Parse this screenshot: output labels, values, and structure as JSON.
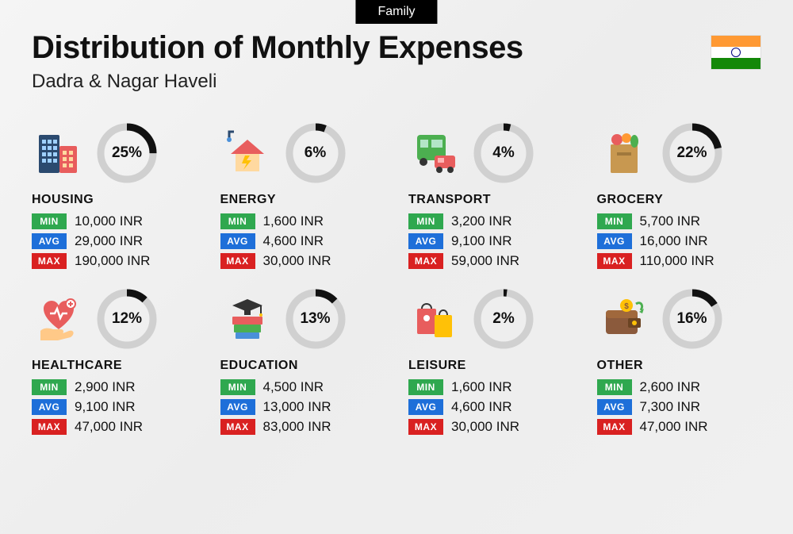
{
  "badge": "Family",
  "title": "Distribution of Monthly Expenses",
  "subtitle": "Dadra & Nagar Haveli",
  "flag": {
    "top_color": "#ff9933",
    "middle_color": "#ffffff",
    "bottom_color": "#138808",
    "chakra_color": "#000080"
  },
  "labels": {
    "min": "MIN",
    "avg": "AVG",
    "max": "MAX"
  },
  "label_colors": {
    "min": "#2fa84f",
    "avg": "#1e6fd9",
    "max": "#d92121"
  },
  "ring": {
    "bg_color": "#d0d0d0",
    "fg_color": "#111111",
    "stroke_width": 9
  },
  "currency_suffix": "INR",
  "categories": [
    {
      "key": "housing",
      "name": "HOUSING",
      "pct": 25,
      "min": "10,000 INR",
      "avg": "29,000 INR",
      "max": "190,000 INR",
      "icon": "buildings"
    },
    {
      "key": "energy",
      "name": "ENERGY",
      "pct": 6,
      "min": "1,600 INR",
      "avg": "4,600 INR",
      "max": "30,000 INR",
      "icon": "energy-house"
    },
    {
      "key": "transport",
      "name": "TRANSPORT",
      "pct": 4,
      "min": "3,200 INR",
      "avg": "9,100 INR",
      "max": "59,000 INR",
      "icon": "bus-car"
    },
    {
      "key": "grocery",
      "name": "GROCERY",
      "pct": 22,
      "min": "5,700 INR",
      "avg": "16,000 INR",
      "max": "110,000 INR",
      "icon": "grocery-bag"
    },
    {
      "key": "healthcare",
      "name": "HEALTHCARE",
      "pct": 12,
      "min": "2,900 INR",
      "avg": "9,100 INR",
      "max": "47,000 INR",
      "icon": "heart-hand"
    },
    {
      "key": "education",
      "name": "EDUCATION",
      "pct": 13,
      "min": "4,500 INR",
      "avg": "13,000 INR",
      "max": "83,000 INR",
      "icon": "grad-books"
    },
    {
      "key": "leisure",
      "name": "LEISURE",
      "pct": 2,
      "min": "1,600 INR",
      "avg": "4,600 INR",
      "max": "30,000 INR",
      "icon": "shopping-bags"
    },
    {
      "key": "other",
      "name": "OTHER",
      "pct": 16,
      "min": "2,600 INR",
      "avg": "7,300 INR",
      "max": "47,000 INR",
      "icon": "wallet"
    }
  ],
  "icons_svg": {
    "buildings": "<svg width='62' height='62' viewBox='0 0 62 62'><rect x='6' y='8' width='26' height='48' fill='#2b4a6f' rx='2'/><rect x='10' y='14' width='5' height='5' fill='#9fd0ff'/><rect x='17' y='14' width='5' height='5' fill='#9fd0ff'/><rect x='24' y='14' width='5' height='5' fill='#9fd0ff'/><rect x='10' y='22' width='5' height='5' fill='#9fd0ff'/><rect x='17' y='22' width='5' height='5' fill='#9fd0ff'/><rect x='24' y='22' width='5' height='5' fill='#9fd0ff'/><rect x='10' y='30' width='5' height='5' fill='#9fd0ff'/><rect x='17' y='30' width='5' height='5' fill='#9fd0ff'/><rect x='24' y='30' width='5' height='5' fill='#9fd0ff'/><rect x='10' y='38' width='5' height='5' fill='#9fd0ff'/><rect x='17' y='38' width='5' height='5' fill='#9fd0ff'/><rect x='24' y='38' width='5' height='5' fill='#9fd0ff'/><rect x='32' y='22' width='22' height='34' fill='#e85d5d' rx='2'/><rect x='36' y='28' width='5' height='5' fill='#ffd9a0'/><rect x='44' y='28' width='5' height='5' fill='#ffd9a0'/><rect x='36' y='36' width='5' height='5' fill='#ffd9a0'/><rect x='44' y='36' width='5' height='5' fill='#ffd9a0'/><rect x='36' y='44' width='5' height='5' fill='#ffd9a0'/><rect x='44' y='44' width='5' height='5' fill='#ffd9a0'/></svg>",
    "energy-house": "<svg width='62' height='62' viewBox='0 0 62 62'><path d='M8 12 L8 4 L14 4' stroke='#2b4a6f' stroke-width='3' fill='none'/><circle cx='8' cy='14' r='3' fill='#4a90d9'/><polygon points='31,14 52,32 10,32' fill='#e85d5d'/><rect x='16' y='32' width='30' height='22' fill='#ffd9a0'/><polygon points='28,34 24,44 30,44 26,52 36,40 30,40 34,34' fill='#ffc107'/></svg>",
    "bus-car": "<svg width='62' height='62' viewBox='0 0 62 62'><rect x='8' y='8' width='36' height='32' fill='#4caf50' rx='4'/><rect x='12' y='14' width='10' height='10' fill='#b3e5c7'/><rect x='26' y='14' width='14' height='10' fill='#b3e5c7'/><circle cx='16' cy='42' r='5' fill='#333'/><circle cx='36' cy='42' r='5' fill='#333'/><rect x='30' y='34' width='26' height='16' fill='#e85d5d' rx='3'/><rect x='34' y='37' width='8' height='6' fill='#ffb3b3'/><circle cx='36' cy='52' r='4' fill='#333'/><circle cx='50' cy='52' r='4' fill='#333'/></svg>",
    "grocery-bag": "<svg width='62' height='62' viewBox='0 0 62 62'><rect x='14' y='20' width='34' height='36' fill='#d4a od0' rx='2' style='fill:#d4a050'/><rect x='14' y='20' width='34' height='36' fill='#c89850' rx='2'/><circle cx='22' cy='14' r='7' fill='#e85d5d'/><circle cx='34' cy='12' r='6' fill='#ff9933'/><ellipse cx='44' cy='16' rx='5' ry='8' fill='#4caf50'/><rect x='22' y='30' width='18' height='4' fill='#a0783c'/></svg>",
    "heart-hand": "<svg width='62' height='62' viewBox='0 0 62 62'><path d='M31 44 C18 34 12 26 12 18 C12 12 17 8 22 8 C26 8 29 10 31 14 C33 10 36 8 40 8 C45 8 50 12 50 18 C50 26 44 34 31 44 Z' fill='#e85d5d'/><path d='M20 24 L26 24 L29 18 L33 30 L36 24 L42 24' stroke='#fff' stroke-width='2.5' fill='none'/><circle cx='46' cy='12' r='6' fill='#fff' stroke='#e85d5d' stroke-width='2'/><path d='M46 9 L46 15 M43 12 L49 12' stroke='#e85d5d' stroke-width='2'/><path d='M8 46 C12 42 18 42 24 44 L34 44 C38 44 38 50 34 50 L44 46 C50 44 52 50 46 54 L30 58 L8 58 Z' fill='#ffc988'/></svg>",
    "grad-books": "<svg width='62' height='62' viewBox='0 0 62 62'><rect x='14' y='38' width='34' height='10' fill='#4caf50' rx='1'/><rect x='12' y='28' width='38' height='10' fill='#e85d5d' rx='1'/><rect x='16' y='48' width='30' height='8' fill='#4a90d9' rx='1'/><polygon points='31,6 50,14 31,22 12,14' fill='#333'/><rect x='27' y='18' width='8' height='8' fill='#333'/><path d='M48 14 L48 24' stroke='#333' stroke-width='2'/><circle cx='48' cy='26' r='2' fill='#ffc107'/></svg>",
    "shopping-bags": "<svg width='62' height='62' viewBox='0 0 62 62'><rect x='8' y='18' width='24' height='32' fill='#e85d5d' rx='2'/><path d='M14 18 C14 10 26 10 26 18' stroke='#333' stroke-width='2' fill='none'/><circle cx='20' cy='30' r='4' fill='#fff'/><rect x='30' y='26' width='22' height='28' fill='#ffc107' rx='2'/><path d='M36 26 C36 18 46 18 46 26' stroke='#333' stroke-width='2' fill='none'/></svg>",
    "wallet": "<svg width='62' height='62' viewBox='0 0 62 62'><rect x='8' y='20' width='40' height='30' fill='#8b5a3c' rx='4'/><rect x='8' y='20' width='40' height='10' fill='#a0683c' rx='4'/><rect x='36' y='30' width='16' height='12' fill='#6b4423' rx='2'/><circle cx='44' cy='36' r='3' fill='#ffc107'/><circle cx='34' cy='14' r='8' fill='#ffc107'/><text x='34' y='18' font-size='10' text-anchor='middle' fill='#8b5a3c' font-weight='bold'>$</text><path d='M46 12 C52 8 56 14 52 20' stroke='#4caf50' stroke-width='3' fill='none'/><polygon points='50,22 56,18 54,24' fill='#4caf50'/></svg>"
  }
}
